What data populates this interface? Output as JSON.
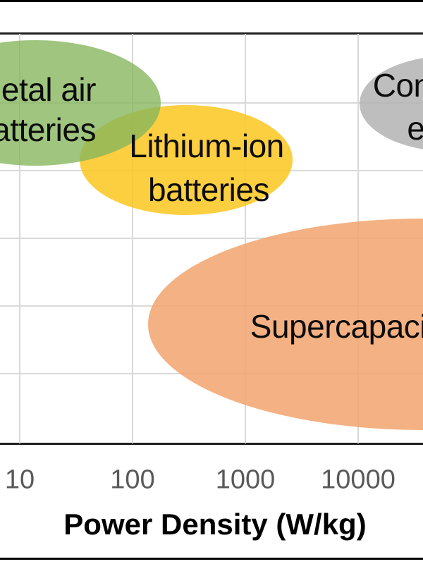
{
  "chart_data": {
    "type": "scatter",
    "variant": "labeled-ellipse-regions (Ragone-style energy storage comparison, cropped view)",
    "title": "",
    "xlabel": "Power Density (W/kg)",
    "x_scale": "log",
    "x_ticks": [
      10,
      100,
      1000,
      10000
    ],
    "x_tick_labels": [
      "10",
      "100",
      "1000",
      "10000"
    ],
    "y_axis_visible": false,
    "ylabel": "",
    "grid": true,
    "regions": [
      {
        "name": "metal-air-batteries",
        "label_lines": [
          "Metal air",
          "batteries"
        ],
        "fill": "#9CC47E",
        "x_range_wkg_approx": [
          1,
          180
        ],
        "clipped_at": "left image edge"
      },
      {
        "name": "lithium-ion-batteries",
        "label_lines": [
          "Lithium-ion",
          "batteries"
        ],
        "fill": "#FCCF40",
        "x_range_wkg_approx": [
          35,
          2600
        ],
        "clipped_at": ""
      },
      {
        "name": "conventional-capacitors",
        "label_lines": [
          "Conventional",
          "electrolytic"
        ],
        "fill": "#BEBEBE",
        "x_range_wkg_approx": [
          10000,
          100000
        ],
        "clipped_at": "right image edge (only 'Con' / 'e' visible)"
      },
      {
        "name": "supercapacitor",
        "label_lines": [
          "Supercapacitor"
        ],
        "fill": "#F4B183",
        "x_range_wkg_approx": [
          140,
          100000
        ],
        "clipped_at": "right image edge (visible up to 'Supercapacit')"
      }
    ]
  },
  "colors": {
    "background": "#FFFFFF",
    "plot_border": "#1F1F1F",
    "gridline": "#D9D9D9",
    "tick_label": "#595959",
    "label_text": "#0D0D0D",
    "edge_bars": "#000000"
  }
}
